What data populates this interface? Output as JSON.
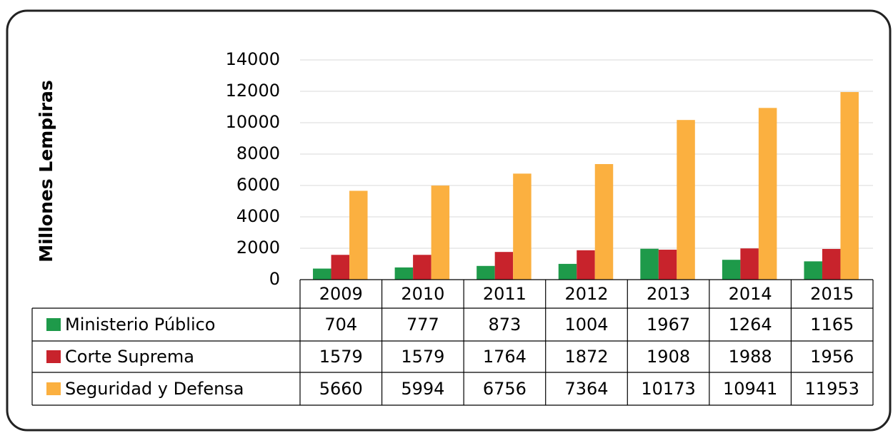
{
  "chart_data": {
    "type": "bar",
    "y_label": "Millones Lempiras",
    "categories": [
      "2009",
      "2010",
      "2011",
      "2012",
      "2013",
      "2014",
      "2015"
    ],
    "series": [
      {
        "name": "Ministerio Público",
        "color": "#1e9a4a",
        "values": [
          704,
          777,
          873,
          1004,
          1967,
          1264,
          1165
        ]
      },
      {
        "name": "Corte Suprema",
        "color": "#c8232c",
        "values": [
          1579,
          1579,
          1764,
          1872,
          1908,
          1988,
          1956
        ]
      },
      {
        "name": "Seguridad y Defensa",
        "color": "#fbb040",
        "values": [
          5660,
          5994,
          6756,
          7364,
          10173,
          10941,
          11953
        ]
      }
    ],
    "ylim": [
      0,
      14000
    ],
    "yticks": [
      0,
      2000,
      4000,
      6000,
      8000,
      10000,
      12000,
      14000
    ],
    "grid": true
  }
}
